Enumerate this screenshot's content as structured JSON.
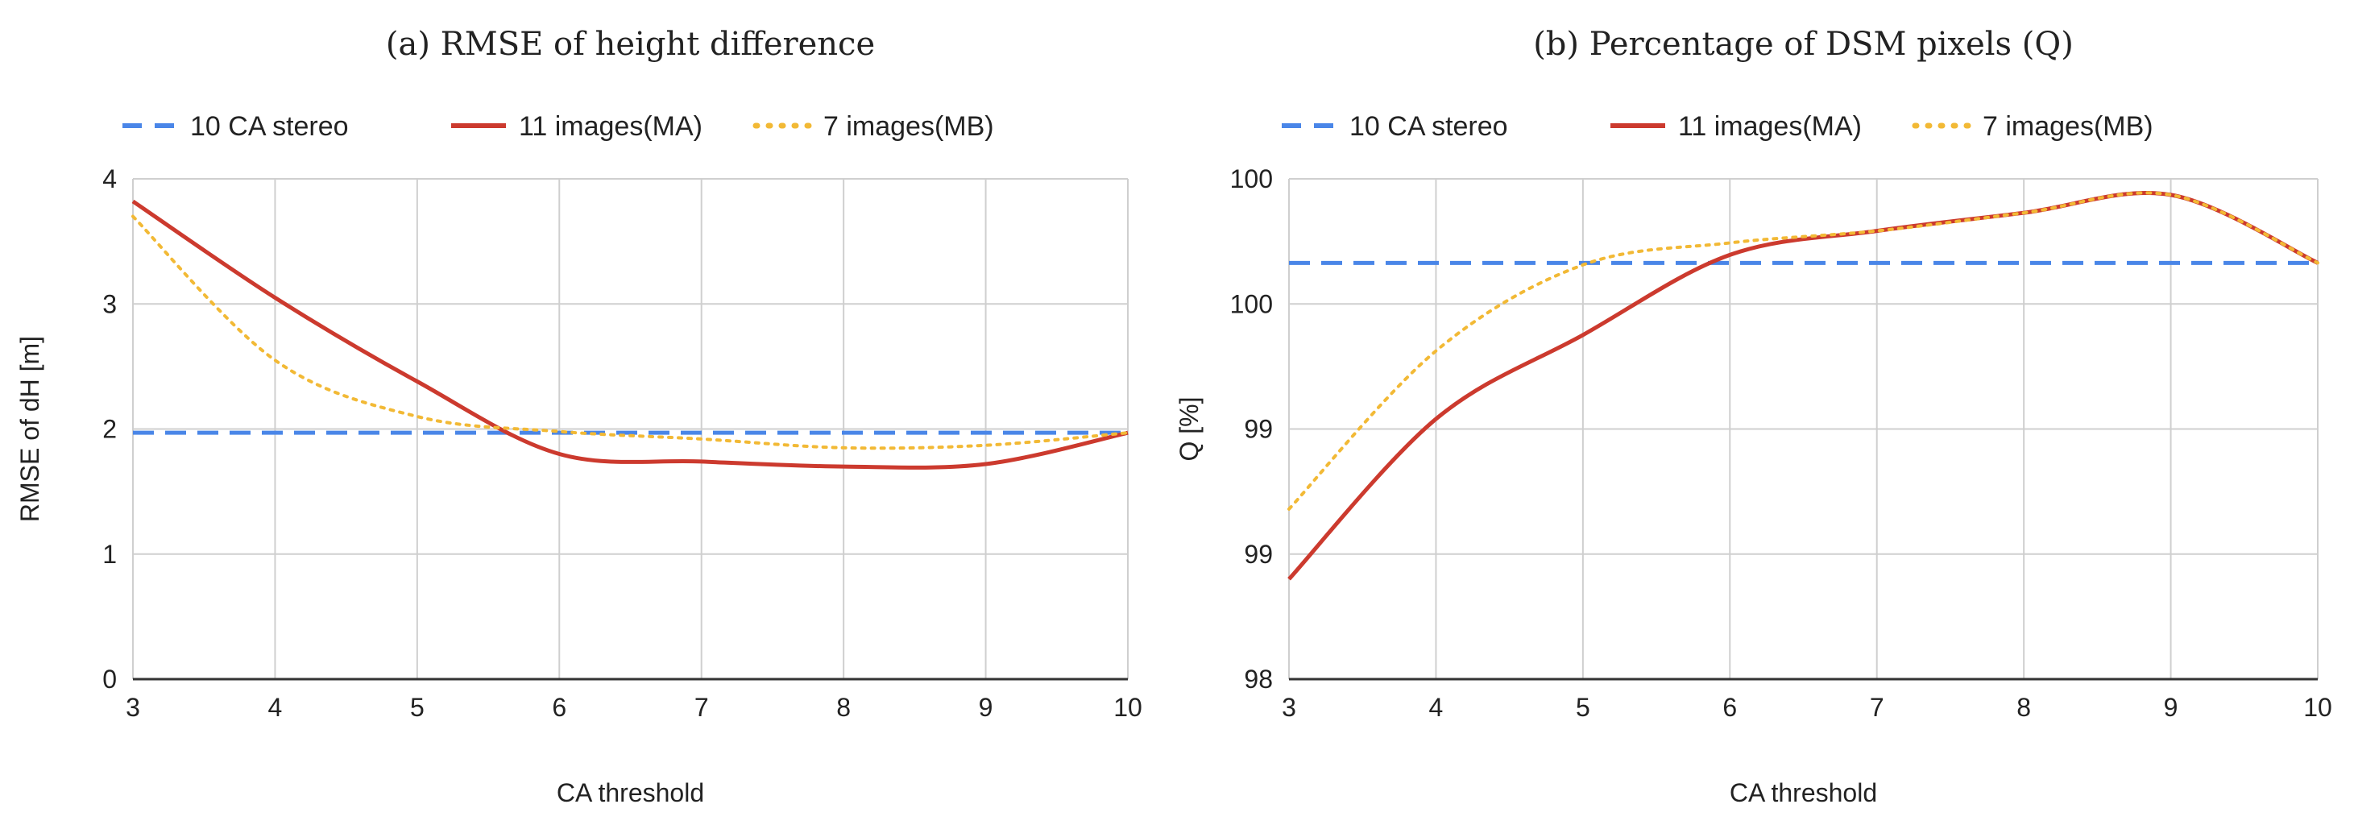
{
  "chart_data": [
    {
      "type": "line",
      "title": "(a) RMSE of height difference",
      "xlabel": "CA threshold",
      "ylabel": "RMSE of dH [m]",
      "x": [
        3,
        4,
        5,
        6,
        7,
        8,
        9,
        10
      ],
      "xlim": [
        3,
        10
      ],
      "ylim": [
        0,
        4
      ],
      "xticks": [
        "3",
        "4",
        "5",
        "6",
        "7",
        "8",
        "9",
        "10"
      ],
      "yticks": [
        "0",
        "1",
        "2",
        "3",
        "4"
      ],
      "grid": true,
      "legend_position": "top",
      "series": [
        {
          "name": "10 CA stereo",
          "style": "dashed",
          "color": "#4a86e8",
          "values": [
            1.97,
            1.97,
            1.97,
            1.97,
            1.97,
            1.97,
            1.97,
            1.97
          ]
        },
        {
          "name": "11 images(MA)",
          "style": "solid",
          "color": "#cc3a2e",
          "values": [
            3.82,
            3.05,
            2.38,
            1.8,
            1.74,
            1.7,
            1.72,
            1.97
          ]
        },
        {
          "name": "7 images(MB)",
          "style": "dotted",
          "color": "#f2b935",
          "values": [
            3.7,
            2.55,
            2.1,
            1.98,
            1.92,
            1.85,
            1.87,
            1.97
          ]
        }
      ]
    },
    {
      "type": "line",
      "title": "(b) Percentage of DSM pixels (Q)",
      "xlabel": "CA threshold",
      "ylabel": "Q [%]",
      "x": [
        3,
        4,
        5,
        6,
        7,
        8,
        9,
        10
      ],
      "xlim": [
        3,
        10
      ],
      "ylim": [
        98.0,
        100.5
      ],
      "xticks": [
        "3",
        "4",
        "5",
        "6",
        "7",
        "8",
        "9",
        "10"
      ],
      "yticks": [
        "98",
        "99",
        "99",
        "100",
        "100"
      ],
      "grid": true,
      "legend_position": "top",
      "series": [
        {
          "name": "10 CA stereo",
          "style": "dashed",
          "color": "#4a86e8",
          "values": [
            100.08,
            100.08,
            100.08,
            100.08,
            100.08,
            100.08,
            100.08,
            100.08
          ]
        },
        {
          "name": "11 images(MA)",
          "style": "solid",
          "color": "#cc3a2e",
          "values": [
            98.5,
            99.3,
            99.72,
            100.12,
            100.24,
            100.33,
            100.42,
            100.08
          ]
        },
        {
          "name": "7 images(MB)",
          "style": "dotted",
          "color": "#f2b935",
          "values": [
            98.85,
            99.64,
            100.07,
            100.18,
            100.24,
            100.33,
            100.42,
            100.08
          ]
        }
      ]
    }
  ]
}
